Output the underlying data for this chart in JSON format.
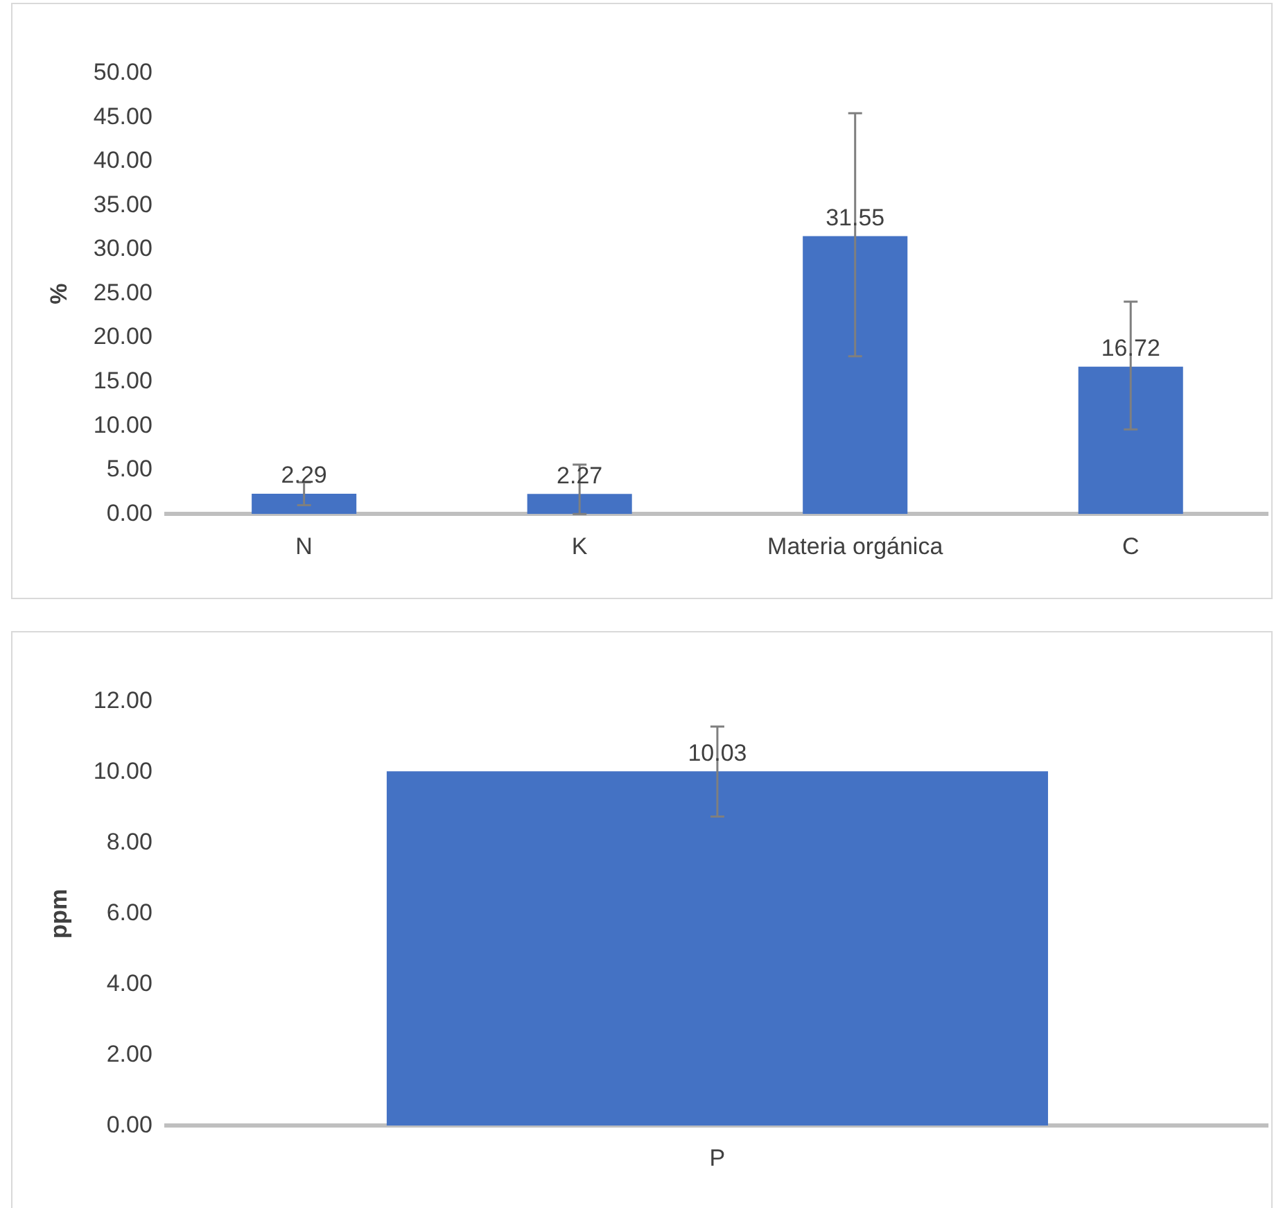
{
  "chart_data": [
    {
      "type": "bar",
      "ylabel": "%",
      "categories": [
        "N",
        "K",
        "Materia orgánica",
        "C"
      ],
      "values": [
        2.29,
        2.27,
        31.55,
        16.72
      ],
      "color": "#4472c4",
      "errors": [
        [
          1.0,
          3.6
        ],
        [
          0,
          5.6
        ],
        [
          17.9,
          45.5
        ],
        [
          9.6,
          24.1
        ]
      ],
      "ylim": [
        0,
        50
      ],
      "yticks": [
        {
          "value": 0,
          "label": "0.00"
        },
        {
          "value": 5,
          "label": "5.00"
        },
        {
          "value": 10,
          "label": "10.00"
        },
        {
          "value": 15,
          "label": "15.00"
        },
        {
          "value": 20,
          "label": "20.00"
        },
        {
          "value": 25,
          "label": "25.00"
        },
        {
          "value": 30,
          "label": "30.00"
        },
        {
          "value": 35,
          "label": "35.00"
        },
        {
          "value": 40,
          "label": "40.00"
        },
        {
          "value": 45,
          "label": "45.00"
        },
        {
          "value": 50,
          "label": "50.00"
        }
      ],
      "data_labels": true,
      "grid": false,
      "legend": false
    },
    {
      "type": "bar",
      "ylabel": "ppm",
      "categories": [
        "P"
      ],
      "values": [
        10.03
      ],
      "color": "#4472c4",
      "errors": [
        [
          8.75,
          11.3
        ]
      ],
      "ylim": [
        0,
        12
      ],
      "yticks": [
        {
          "value": 0,
          "label": "0.00"
        },
        {
          "value": 2,
          "label": "2.00"
        },
        {
          "value": 4,
          "label": "4.00"
        },
        {
          "value": 6,
          "label": "6.00"
        },
        {
          "value": 8,
          "label": "8.00"
        },
        {
          "value": 10,
          "label": "10.00"
        },
        {
          "value": 12,
          "label": "12.00"
        }
      ],
      "data_labels": true,
      "grid": false,
      "legend": false
    }
  ]
}
